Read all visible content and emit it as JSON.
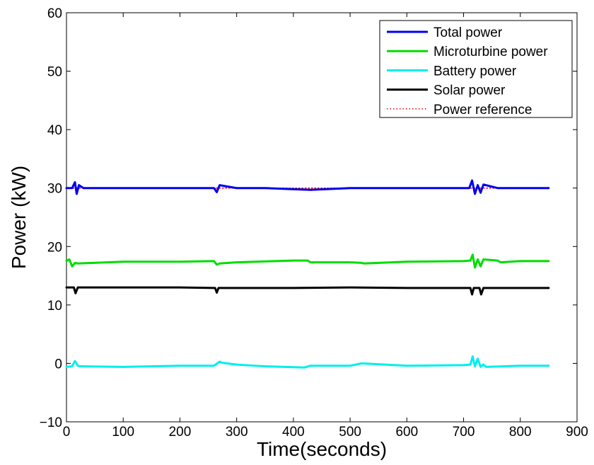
{
  "chart_data": {
    "type": "line",
    "title": "",
    "xlabel": "Time(seconds)",
    "ylabel": "Power (kW)",
    "xlim": [
      0,
      900
    ],
    "ylim": [
      -10,
      60
    ],
    "xticks": [
      0,
      100,
      200,
      300,
      400,
      500,
      600,
      700,
      800,
      900
    ],
    "yticks": [
      -10,
      0,
      10,
      20,
      30,
      40,
      50,
      60
    ],
    "ytick_labels": [
      "−10",
      "0",
      "10",
      "20",
      "30",
      "40",
      "50",
      "60"
    ],
    "grid": false,
    "legend_position": "top-right",
    "series": [
      {
        "name": "Total power",
        "color": "#0000ee",
        "style": "solid",
        "x": [
          0,
          10,
          15,
          18,
          22,
          30,
          100,
          200,
          260,
          265,
          270,
          300,
          350,
          430,
          500,
          600,
          710,
          715,
          720,
          725,
          730,
          735,
          760,
          800,
          850
        ],
        "y": [
          30,
          30,
          31,
          29,
          30.5,
          30,
          30,
          30,
          30,
          29.3,
          30.5,
          30,
          30,
          29.7,
          30,
          30,
          30,
          31.3,
          29,
          30.5,
          29.2,
          30.6,
          30,
          30,
          30
        ]
      },
      {
        "name": "Microturbine power",
        "color": "#00dd00",
        "style": "solid",
        "x": [
          0,
          5,
          10,
          15,
          20,
          100,
          200,
          260,
          265,
          270,
          300,
          400,
          425,
          430,
          435,
          500,
          520,
          525,
          600,
          700,
          712,
          716,
          720,
          725,
          730,
          735,
          760,
          765,
          800,
          850
        ],
        "y": [
          17.5,
          17.8,
          16.6,
          17.2,
          17.1,
          17.4,
          17.4,
          17.5,
          16.9,
          17.1,
          17.3,
          17.6,
          17.6,
          17.3,
          17.3,
          17.3,
          17.2,
          17.1,
          17.4,
          17.5,
          17.6,
          18.6,
          16.4,
          17.8,
          16.6,
          17.8,
          17.6,
          17.3,
          17.5,
          17.5
        ]
      },
      {
        "name": "Battery power",
        "color": "#00eeee",
        "style": "solid",
        "x": [
          0,
          10,
          15,
          20,
          25,
          100,
          200,
          260,
          270,
          275,
          300,
          350,
          420,
          430,
          450,
          500,
          520,
          600,
          700,
          712,
          716,
          720,
          725,
          730,
          735,
          740,
          800,
          850
        ],
        "y": [
          -0.6,
          -0.5,
          0.4,
          -0.4,
          -0.5,
          -0.6,
          -0.4,
          -0.4,
          0.3,
          0.1,
          -0.2,
          -0.5,
          -0.7,
          -0.4,
          -0.4,
          -0.4,
          0.0,
          -0.4,
          -0.3,
          -0.2,
          1.2,
          -0.5,
          0.8,
          -0.6,
          -0.2,
          -0.6,
          -0.4,
          -0.4
        ]
      },
      {
        "name": "Solar power",
        "color": "#000000",
        "style": "solid",
        "x": [
          0,
          10,
          13,
          16,
          20,
          100,
          200,
          260,
          262,
          265,
          268,
          300,
          400,
          500,
          600,
          700,
          712,
          715,
          718,
          725,
          728,
          731,
          735,
          800,
          850
        ],
        "y": [
          13,
          13,
          13,
          12,
          13,
          13,
          13,
          12.9,
          12.9,
          12.1,
          12.9,
          12.9,
          12.9,
          13,
          12.9,
          12.9,
          12.9,
          11.8,
          12.9,
          12.9,
          12.9,
          11.8,
          12.9,
          12.9,
          12.9
        ]
      },
      {
        "name": "Power reference",
        "color": "#ee0000",
        "style": "dotted",
        "x": [
          0,
          850
        ],
        "y": [
          30,
          30
        ]
      }
    ]
  }
}
